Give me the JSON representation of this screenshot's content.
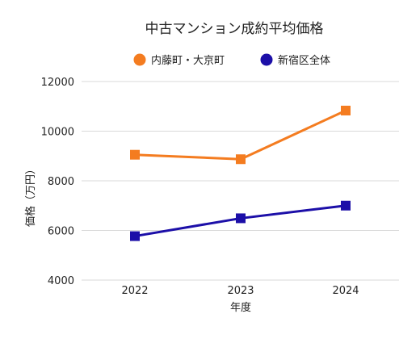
{
  "chart_data": {
    "type": "line",
    "title": "中古マンション成約平均価格",
    "xlabel": "年度",
    "ylabel": "価格（万円）",
    "categories": [
      "2022",
      "2023",
      "2024"
    ],
    "ylim": [
      4000,
      12000
    ],
    "yticks": [
      4000,
      6000,
      8000,
      10000,
      12000
    ],
    "grid": true,
    "legend_position": "top",
    "series": [
      {
        "name": "内藤町・大京町",
        "color": "#f47c20",
        "marker": "square",
        "values": [
          9050,
          8870,
          10830
        ]
      },
      {
        "name": "新宿区全体",
        "color": "#1c0fa8",
        "marker": "square",
        "values": [
          5770,
          6490,
          7000
        ]
      }
    ]
  }
}
